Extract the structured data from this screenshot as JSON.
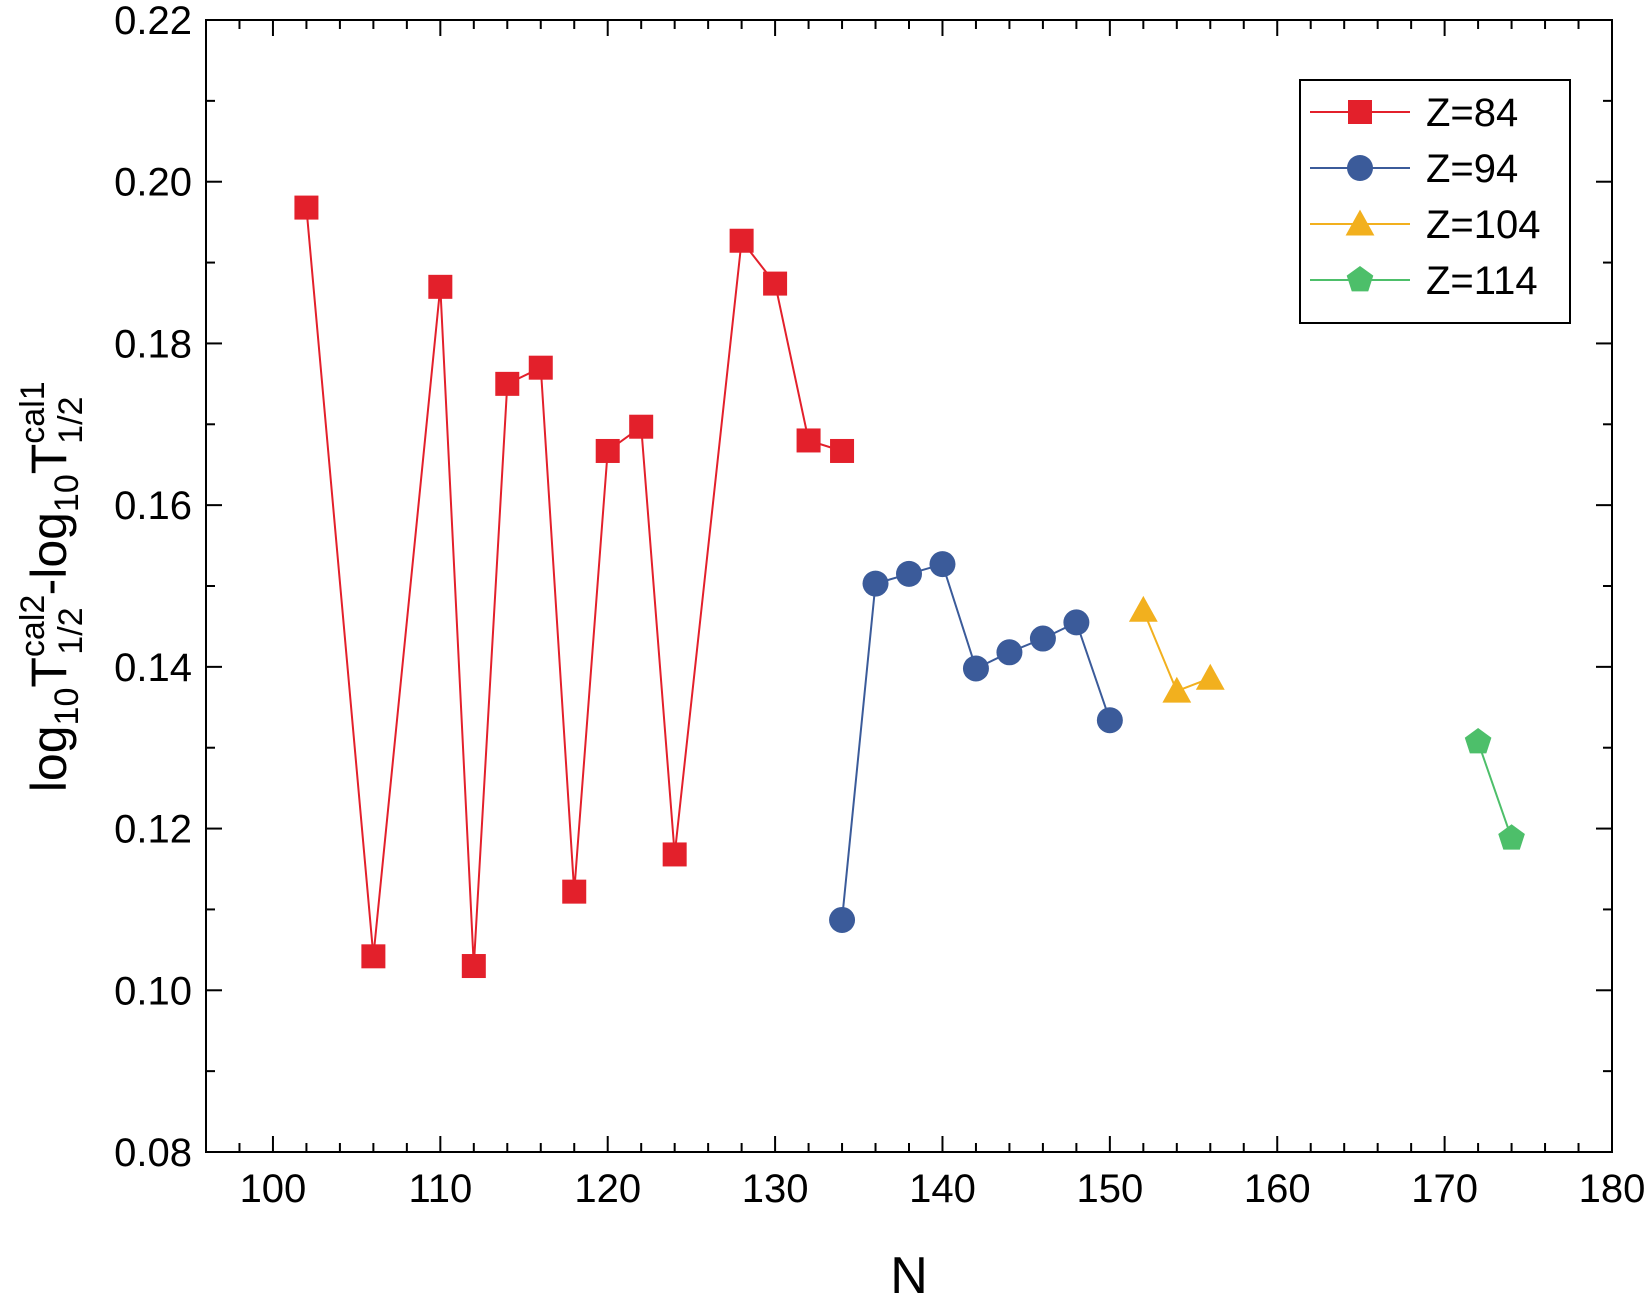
{
  "chart_data": {
    "type": "scatter",
    "xlabel": "N",
    "ylabel": {
      "prefix1": "log",
      "sub1": "10",
      "t1": "T",
      "sup1": "cal2",
      "subscript1": "1/2",
      "middle": "-log",
      "sub2": "10",
      "t2": "T",
      "sup2": "cal1",
      "subscript2": "1/2"
    },
    "xlim": [
      96,
      180
    ],
    "ylim": [
      0.08,
      0.22
    ],
    "x_ticks": [
      "100",
      "110",
      "120",
      "130",
      "140",
      "150",
      "160",
      "170",
      "180"
    ],
    "y_ticks": [
      "0.08",
      "0.10",
      "0.12",
      "0.14",
      "0.16",
      "0.18",
      "0.20",
      "0.22"
    ],
    "legend_position": "top-right",
    "series": [
      {
        "name": "Z=84",
        "color": "#e3202b",
        "marker": "square",
        "points": [
          [
            102,
            0.1968
          ],
          [
            106,
            0.1042
          ],
          [
            110,
            0.187
          ],
          [
            112,
            0.103
          ],
          [
            114,
            0.175
          ],
          [
            116,
            0.177
          ],
          [
            118,
            0.1122
          ],
          [
            120,
            0.1667
          ],
          [
            122,
            0.1697
          ],
          [
            124,
            0.1168
          ],
          [
            128,
            0.1927
          ],
          [
            130,
            0.1874
          ],
          [
            132,
            0.168
          ],
          [
            134,
            0.1667
          ]
        ]
      },
      {
        "name": "Z=94",
        "color": "#3b5b9a",
        "marker": "circle",
        "points": [
          [
            134,
            0.1087
          ],
          [
            136,
            0.1503
          ],
          [
            138,
            0.1515
          ],
          [
            140,
            0.1527
          ],
          [
            142,
            0.1398
          ],
          [
            144,
            0.1418
          ],
          [
            146,
            0.1435
          ],
          [
            148,
            0.1455
          ],
          [
            150,
            0.1334
          ]
        ]
      },
      {
        "name": "Z=104",
        "color": "#f2b01e",
        "marker": "triangle",
        "points": [
          [
            152,
            0.147
          ],
          [
            154,
            0.137
          ],
          [
            156,
            0.1386
          ]
        ]
      },
      {
        "name": "Z=114",
        "color": "#4dbf6a",
        "marker": "pentagon",
        "points": [
          [
            172,
            0.1307
          ],
          [
            174,
            0.1188
          ]
        ]
      }
    ]
  }
}
